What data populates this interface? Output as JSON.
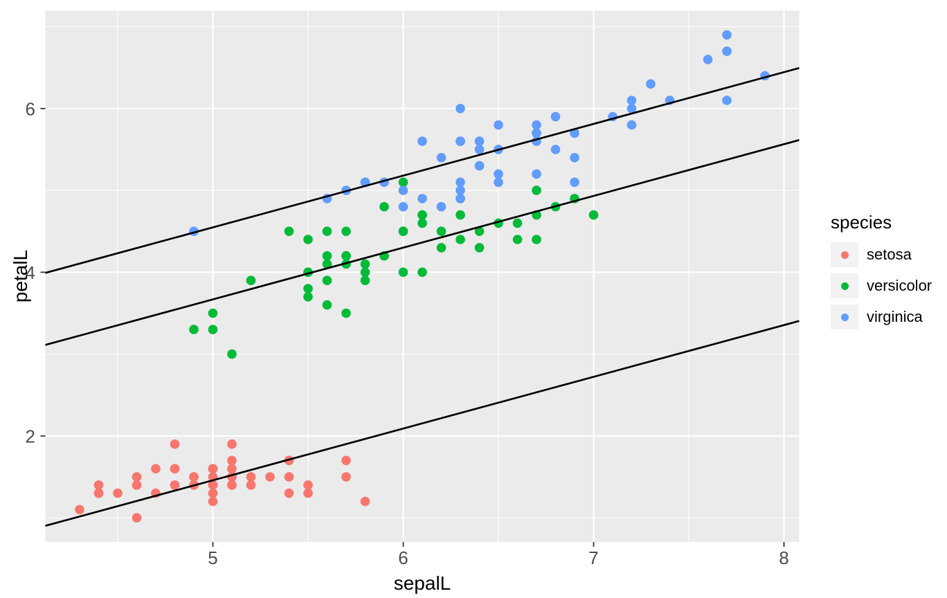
{
  "figure": {
    "xlabel": "sepalL",
    "ylabel": "petalL",
    "legend": {
      "title": "species",
      "items": [
        {
          "label": "setosa",
          "color": "#F8766D"
        },
        {
          "label": "versicolor",
          "color": "#00BA38"
        },
        {
          "label": "virginica",
          "color": "#619CFF"
        }
      ]
    }
  },
  "style": {
    "background": "#FFFFFF",
    "panel_bg": "#EBEBEB",
    "grid_color": "#FFFFFF",
    "tick_label_color": "#4D4D4D",
    "tick_mark_color": "#333333",
    "axis_title_color": "#000000",
    "legend_key_bg": "#F2F2F2",
    "fit_line_color": "#000000"
  },
  "chart_data": {
    "type": "scatter",
    "title": "",
    "xlabel": "sepalL",
    "ylabel": "petalL",
    "xlim": [
      4.12,
      8.08
    ],
    "ylim": [
      0.705,
      7.195
    ],
    "x_ticks_major": [
      5,
      6,
      7,
      8
    ],
    "x_ticks_minor": [
      4.5,
      5.5,
      6.5,
      7.5
    ],
    "y_ticks_major": [
      2,
      4,
      6
    ],
    "y_ticks_minor": [
      1,
      3,
      5,
      7
    ],
    "grid": "on",
    "legend_position": "right",
    "legend_title": "species",
    "point_radius": 6.8,
    "series": [
      {
        "name": "setosa",
        "color": "#F8766D",
        "points": [
          [
            5.1,
            1.4
          ],
          [
            4.9,
            1.4
          ],
          [
            4.7,
            1.3
          ],
          [
            4.6,
            1.5
          ],
          [
            5.0,
            1.4
          ],
          [
            5.4,
            1.7
          ],
          [
            4.6,
            1.4
          ],
          [
            5.0,
            1.5
          ],
          [
            4.4,
            1.4
          ],
          [
            4.9,
            1.5
          ],
          [
            5.4,
            1.5
          ],
          [
            4.8,
            1.6
          ],
          [
            4.8,
            1.4
          ],
          [
            4.3,
            1.1
          ],
          [
            5.8,
            1.2
          ],
          [
            5.7,
            1.5
          ],
          [
            5.4,
            1.3
          ],
          [
            5.1,
            1.4
          ],
          [
            5.7,
            1.7
          ],
          [
            5.1,
            1.5
          ],
          [
            5.4,
            1.7
          ],
          [
            5.1,
            1.5
          ],
          [
            4.6,
            1.0
          ],
          [
            5.1,
            1.7
          ],
          [
            4.8,
            1.9
          ],
          [
            5.0,
            1.6
          ],
          [
            5.0,
            1.6
          ],
          [
            5.2,
            1.5
          ],
          [
            5.2,
            1.4
          ],
          [
            4.7,
            1.6
          ],
          [
            4.8,
            1.6
          ],
          [
            5.4,
            1.5
          ],
          [
            5.2,
            1.5
          ],
          [
            5.5,
            1.4
          ],
          [
            4.9,
            1.5
          ],
          [
            5.0,
            1.2
          ],
          [
            5.5,
            1.3
          ],
          [
            4.9,
            1.4
          ],
          [
            4.4,
            1.3
          ],
          [
            5.1,
            1.5
          ],
          [
            5.0,
            1.3
          ],
          [
            4.5,
            1.3
          ],
          [
            4.4,
            1.3
          ],
          [
            5.0,
            1.6
          ],
          [
            5.1,
            1.9
          ],
          [
            4.8,
            1.4
          ],
          [
            5.1,
            1.6
          ],
          [
            4.6,
            1.4
          ],
          [
            5.3,
            1.5
          ],
          [
            5.0,
            1.4
          ]
        ]
      },
      {
        "name": "versicolor",
        "color": "#00BA38",
        "points": [
          [
            7.0,
            4.7
          ],
          [
            6.4,
            4.5
          ],
          [
            6.9,
            4.9
          ],
          [
            5.5,
            4.0
          ],
          [
            6.5,
            4.6
          ],
          [
            5.7,
            4.5
          ],
          [
            6.3,
            4.7
          ],
          [
            4.9,
            3.3
          ],
          [
            6.6,
            4.6
          ],
          [
            5.2,
            3.9
          ],
          [
            5.0,
            3.5
          ],
          [
            5.9,
            4.2
          ],
          [
            6.0,
            4.0
          ],
          [
            6.1,
            4.7
          ],
          [
            5.6,
            3.6
          ],
          [
            6.7,
            4.4
          ],
          [
            5.6,
            4.5
          ],
          [
            5.8,
            4.1
          ],
          [
            6.2,
            4.5
          ],
          [
            5.6,
            3.9
          ],
          [
            5.9,
            4.8
          ],
          [
            6.1,
            4.0
          ],
          [
            6.3,
            4.9
          ],
          [
            6.1,
            4.7
          ],
          [
            6.4,
            4.3
          ],
          [
            6.6,
            4.4
          ],
          [
            6.8,
            4.8
          ],
          [
            6.7,
            5.0
          ],
          [
            6.0,
            4.5
          ],
          [
            5.7,
            3.5
          ],
          [
            5.5,
            3.8
          ],
          [
            5.5,
            3.7
          ],
          [
            5.8,
            3.9
          ],
          [
            6.0,
            5.1
          ],
          [
            5.4,
            4.5
          ],
          [
            6.0,
            4.5
          ],
          [
            6.7,
            4.7
          ],
          [
            6.3,
            4.4
          ],
          [
            5.6,
            4.1
          ],
          [
            5.5,
            4.0
          ],
          [
            5.5,
            4.4
          ],
          [
            6.1,
            4.6
          ],
          [
            5.8,
            4.0
          ],
          [
            5.0,
            3.3
          ],
          [
            5.6,
            4.2
          ],
          [
            5.7,
            4.2
          ],
          [
            5.7,
            4.2
          ],
          [
            6.2,
            4.3
          ],
          [
            5.1,
            3.0
          ],
          [
            5.7,
            4.1
          ]
        ]
      },
      {
        "name": "virginica",
        "color": "#619CFF",
        "points": [
          [
            6.3,
            6.0
          ],
          [
            5.8,
            5.1
          ],
          [
            7.1,
            5.9
          ],
          [
            6.3,
            5.6
          ],
          [
            6.5,
            5.8
          ],
          [
            7.6,
            6.6
          ],
          [
            4.9,
            4.5
          ],
          [
            7.3,
            6.3
          ],
          [
            6.7,
            5.8
          ],
          [
            7.2,
            6.1
          ],
          [
            6.5,
            5.1
          ],
          [
            6.4,
            5.3
          ],
          [
            6.8,
            5.5
          ],
          [
            5.7,
            5.0
          ],
          [
            5.8,
            5.1
          ],
          [
            6.4,
            5.3
          ],
          [
            6.5,
            5.5
          ],
          [
            7.7,
            6.7
          ],
          [
            7.7,
            6.9
          ],
          [
            6.0,
            5.0
          ],
          [
            6.9,
            5.7
          ],
          [
            5.6,
            4.9
          ],
          [
            7.7,
            6.7
          ],
          [
            6.3,
            4.9
          ],
          [
            6.7,
            5.7
          ],
          [
            7.2,
            6.0
          ],
          [
            6.2,
            4.8
          ],
          [
            6.1,
            4.9
          ],
          [
            6.4,
            5.6
          ],
          [
            7.2,
            5.8
          ],
          [
            7.4,
            6.1
          ],
          [
            7.9,
            6.4
          ],
          [
            6.4,
            5.6
          ],
          [
            6.3,
            5.1
          ],
          [
            6.1,
            5.6
          ],
          [
            7.7,
            6.1
          ],
          [
            6.3,
            5.6
          ],
          [
            6.4,
            5.5
          ],
          [
            6.0,
            4.8
          ],
          [
            6.9,
            5.4
          ],
          [
            6.7,
            5.6
          ],
          [
            6.9,
            5.1
          ],
          [
            5.8,
            5.1
          ],
          [
            6.8,
            5.9
          ],
          [
            6.7,
            5.7
          ],
          [
            6.7,
            5.2
          ],
          [
            6.3,
            5.0
          ],
          [
            6.5,
            5.2
          ],
          [
            6.2,
            5.4
          ],
          [
            5.9,
            5.1
          ]
        ]
      }
    ],
    "fit_lines": [
      {
        "name": "setosa-fit",
        "slope": 0.6321,
        "intercept": -1.7023
      },
      {
        "name": "versicolor-fit",
        "slope": 0.6321,
        "intercept": 0.5078
      },
      {
        "name": "virginica-fit",
        "slope": 0.6321,
        "intercept": 1.3877
      }
    ]
  }
}
